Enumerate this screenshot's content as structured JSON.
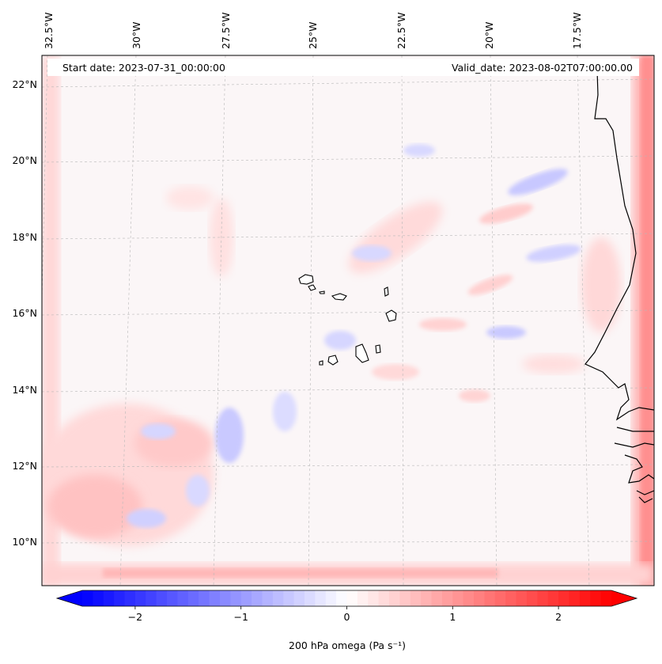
{
  "map": {
    "start_date": "Start date: 2023-07-31_00:00:00",
    "valid_date": "Valid_date: 2023-08-02T07:00:00.00",
    "lon_labels": [
      "32.5°W",
      "30°W",
      "27.5°W",
      "25°W",
      "22.5°W",
      "20°W",
      "17.5°W"
    ],
    "lat_labels": [
      "22°N",
      "20°N",
      "18°N",
      "16°N",
      "14°N",
      "12°N",
      "10°N"
    ],
    "gridlines": true
  },
  "colorbar": {
    "ticks": [
      "−2",
      "−1",
      "0",
      "1",
      "2"
    ],
    "tick_values": [
      -2,
      -1,
      0,
      1,
      2
    ],
    "range": [
      -2.5,
      2.5
    ],
    "label": "200 hPa omega (Pa s⁻¹)",
    "colormap": "bwr",
    "colors": {
      "negative": "#0000ff",
      "zero": "#ffffff",
      "positive": "#ff0000"
    }
  }
}
